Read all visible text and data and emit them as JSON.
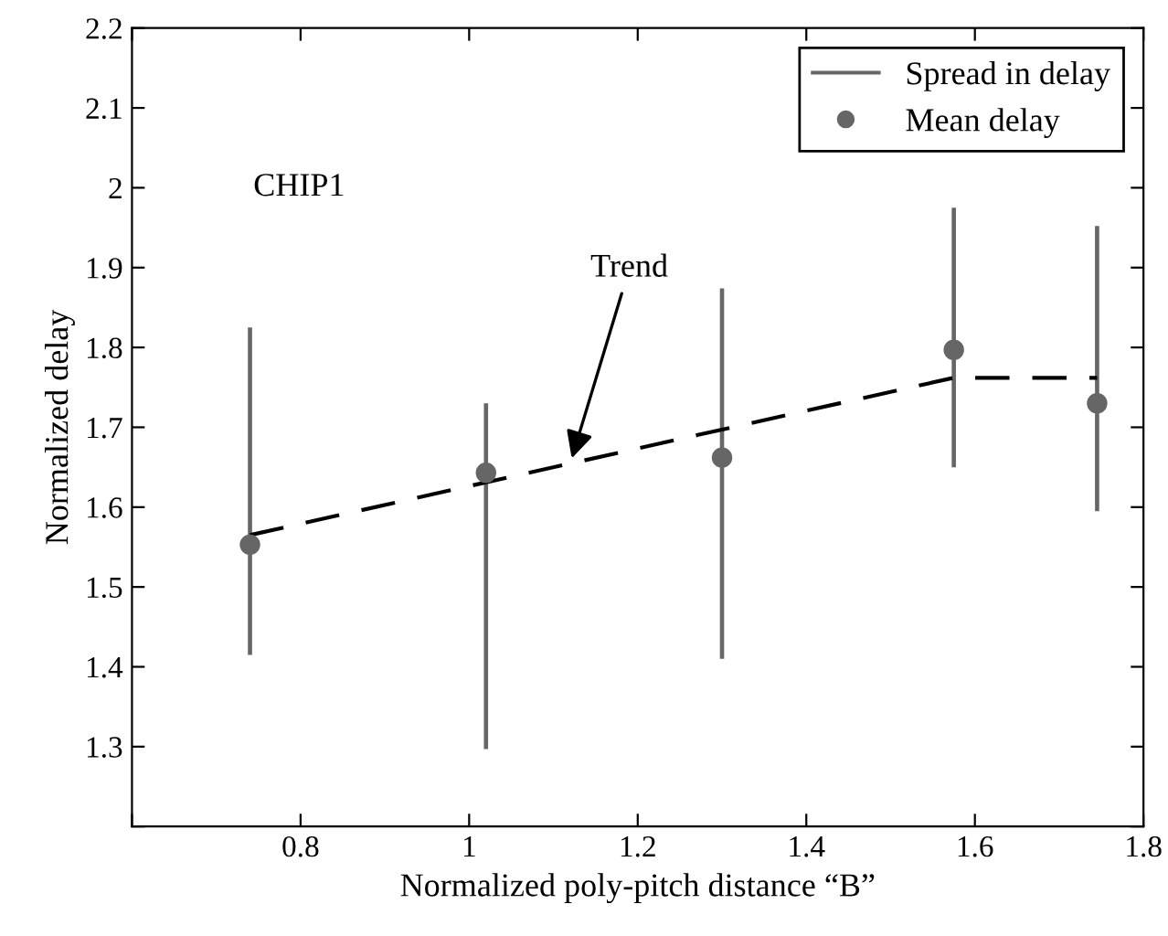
{
  "chart_data": {
    "type": "scatter",
    "xlabel": "Normalized poly-pitch distance “B”",
    "ylabel": "Normalized delay",
    "xlim": [
      0.6,
      1.8
    ],
    "xticks": [
      {
        "value": 0.6,
        "label": null
      },
      0.8,
      1,
      1.2,
      1.4,
      1.6,
      1.8
    ],
    "ylim": [
      1.2,
      2.2
    ],
    "yticks": [
      {
        "value": 1.2,
        "label": null
      },
      1.3,
      1.4,
      1.5,
      1.6,
      1.7,
      1.8,
      1.9,
      2,
      2.1,
      2.2
    ],
    "x": [
      0.74,
      1.02,
      1.3,
      1.575,
      1.745
    ],
    "series": [
      {
        "name": "Mean delay",
        "color": "#666666",
        "values": [
          1.553,
          1.643,
          1.662,
          1.797,
          1.73
        ]
      },
      {
        "name": "Spread in delay",
        "type": "bar",
        "color": "#666666",
        "base": [
          1.415,
          1.297,
          1.41,
          1.65,
          1.595
        ],
        "values": [
          0.41,
          0.433,
          0.464,
          0.325,
          0.357
        ]
      },
      {
        "type": "line",
        "color": "#000000",
        "line_style": "dashed",
        "marker": "none",
        "x": [
          0.74,
          1.575,
          1.745
        ],
        "values": [
          1.565,
          1.762,
          1.762
        ]
      }
    ],
    "annotations": [
      "CHIP1",
      {
        "text": "Trend",
        "x": 1.12,
        "y": 1.655
      }
    ],
    "legend": "top right",
    "grid": false,
    "marker": "circle"
  }
}
